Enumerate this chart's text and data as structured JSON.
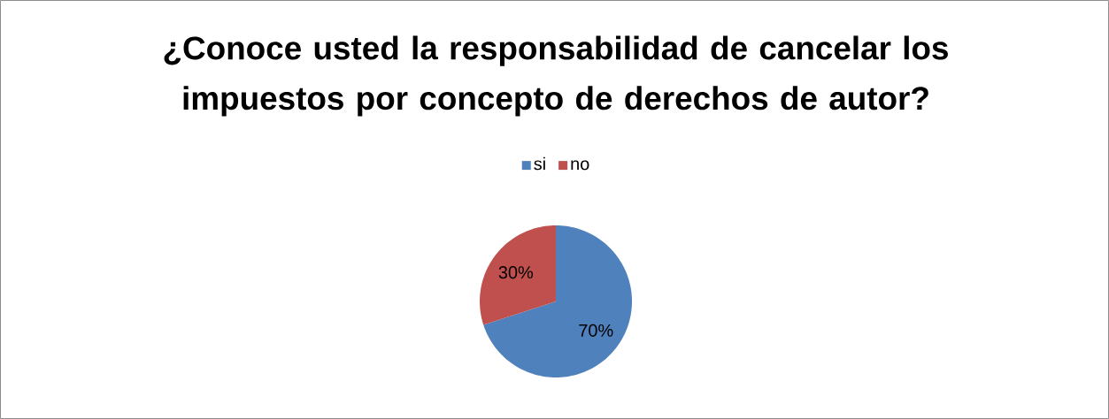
{
  "chart_data": {
    "type": "pie",
    "title": "¿Conoce usted la responsabilidad de cancelar los impuestos por concepto de derechos de autor?",
    "categories": [
      "si",
      "no"
    ],
    "values": [
      70,
      30
    ],
    "colors": [
      "#4f81bd",
      "#c0504d"
    ],
    "value_labels": [
      "70%",
      "30%"
    ],
    "legend": "top"
  }
}
